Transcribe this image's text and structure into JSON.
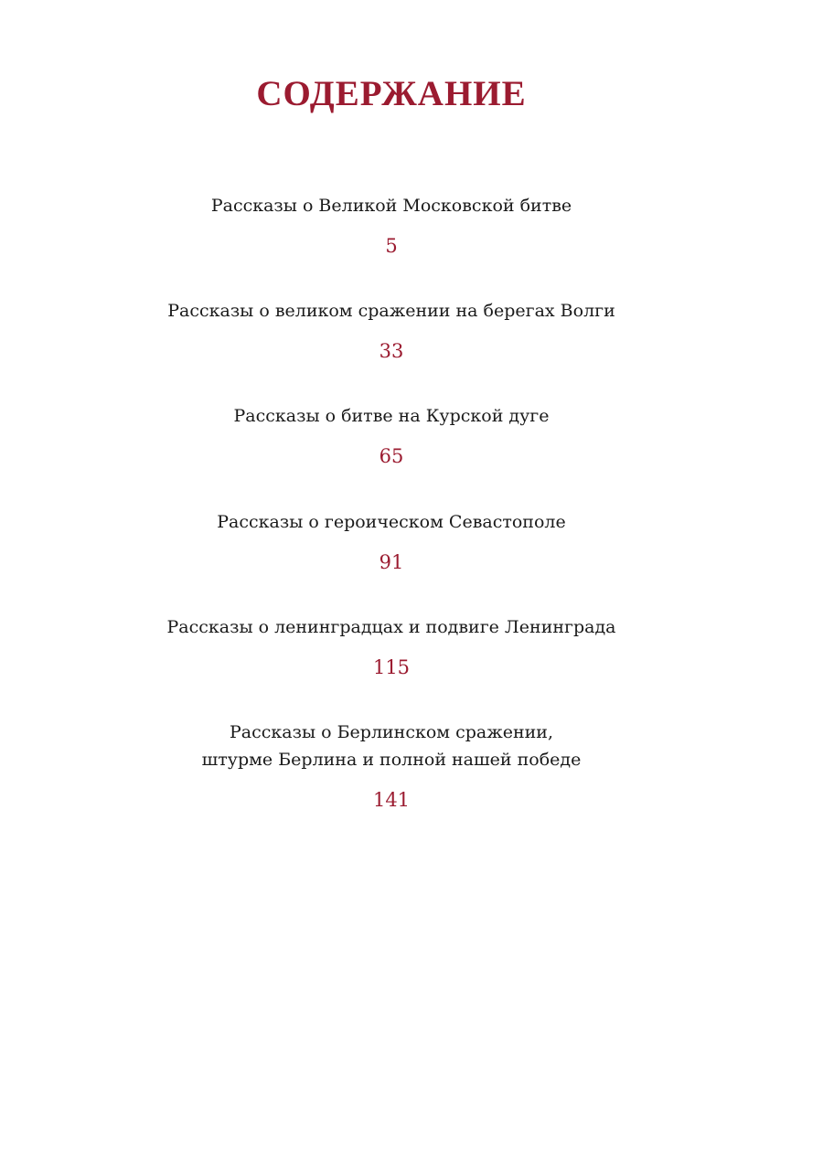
{
  "title": "СОДЕРЖАНИЕ",
  "accent_color": "#9b1b30",
  "entries": [
    {
      "title": "Рассказы о Великой Московской битве",
      "page": "5"
    },
    {
      "title": "Рассказы о великом сражении на берегах Волги",
      "page": "33"
    },
    {
      "title": "Рассказы о битве на Курской дуге",
      "page": "65"
    },
    {
      "title": "Рассказы о героическом Севастополе",
      "page": "91"
    },
    {
      "title": "Рассказы о ленинградцах и подвиге Ленинграда",
      "page": "115"
    },
    {
      "title": "Рассказы о Берлинском сражении,\nштурме Берлина и полной нашей победе",
      "page": "141"
    }
  ]
}
